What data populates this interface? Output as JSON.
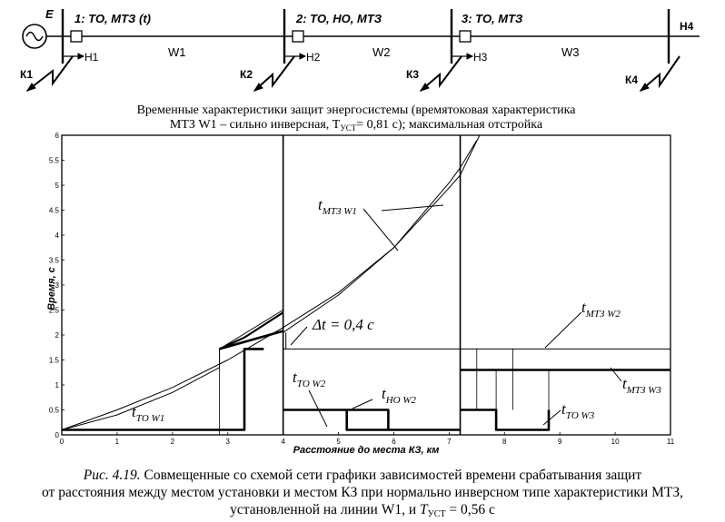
{
  "schematic": {
    "source_label": "E",
    "breakers": [
      {
        "label": "1: ТО, МТЗ (t)",
        "node": "Н1",
        "line": "W1",
        "fault": "К1"
      },
      {
        "label": "2: ТО, НО, МТЗ",
        "node": "Н2",
        "line": "W2",
        "fault": "К2"
      },
      {
        "label": "3: ТО, МТЗ",
        "node": "Н3",
        "line": "W3",
        "fault": "К3"
      }
    ],
    "end_node": "Н4",
    "end_fault": "К4"
  },
  "chart_title_line1": "Временные характеристики защит энергосистемы (времятоковая характеристика",
  "chart_title_line2": "МТЗ W1 – сильно инверсная, Т",
  "chart_title_sub": "УСТ",
  "chart_title_line2_end": "= 0,81 с); максимальная отстройка",
  "chart_data": {
    "type": "line",
    "xlabel": "Расстояние до места КЗ, км",
    "ylabel": "Время, с",
    "xlim": [
      0,
      11
    ],
    "ylim": [
      0,
      6
    ],
    "xticks": [
      "0",
      "1",
      "2",
      "3",
      "4",
      "5",
      "6",
      "7",
      "8",
      "9",
      "10",
      "11"
    ],
    "yticks": [
      "0",
      "0.5",
      "1",
      "1.5",
      "2",
      "2.5",
      "3",
      "3.5",
      "4",
      "4.5",
      "5",
      "5.5",
      "6"
    ],
    "grid": false,
    "section_boundaries_km": [
      4,
      7.2
    ],
    "series": [
      {
        "key": "upper_curve",
        "values": [
          [
            0,
            0.1
          ],
          [
            1,
            0.5
          ],
          [
            2,
            0.95
          ],
          [
            3,
            1.5
          ],
          [
            4,
            2.15
          ],
          [
            5,
            2.85
          ],
          [
            6,
            3.75
          ],
          [
            7,
            4.95
          ],
          [
            7.2,
            5.2
          ],
          [
            7.55,
            6.0
          ]
        ]
      },
      {
        "key": "mtz_w1",
        "values": [
          [
            0,
            0.1
          ],
          [
            1,
            0.4
          ],
          [
            2,
            0.85
          ],
          [
            2.85,
            1.35
          ],
          [
            2.85,
            1.72
          ],
          [
            4,
            2.5
          ],
          [
            4,
            2.05
          ],
          [
            5,
            2.8
          ],
          [
            6,
            3.75
          ],
          [
            7,
            5.05
          ],
          [
            7.2,
            5.35
          ],
          [
            7.5,
            5.9
          ]
        ]
      },
      {
        "key": "mtz_w1_parallel",
        "values": [
          [
            2.85,
            1.72
          ],
          [
            4,
            2.08
          ]
        ]
      },
      {
        "key": "mtz_w1_step",
        "values": [
          [
            2.85,
            0
          ],
          [
            2.85,
            1.72
          ]
        ]
      },
      {
        "key": "to_w1",
        "values": [
          [
            0,
            0.1
          ],
          [
            3.3,
            0.1
          ],
          [
            3.3,
            1.72
          ],
          [
            3.65,
            1.72
          ]
        ]
      },
      {
        "key": "to_w2",
        "values": [
          [
            4,
            0.5
          ],
          [
            5.15,
            0.5
          ],
          [
            5.15,
            0.1
          ],
          [
            7.2,
            0.1
          ]
        ]
      },
      {
        "key": "ho_w2",
        "values": [
          [
            5.15,
            0.5
          ],
          [
            5.9,
            0.5
          ],
          [
            5.9,
            0.1
          ]
        ]
      },
      {
        "key": "mtz_w2",
        "values": [
          [
            4,
            1.72
          ],
          [
            11,
            1.72
          ]
        ]
      },
      {
        "key": "mtz_w2_thin",
        "values": [
          [
            4,
            0.3
          ],
          [
            4,
            1.72
          ]
        ]
      },
      {
        "key": "to_w3",
        "values": [
          [
            7.2,
            0.5
          ],
          [
            7.85,
            0.5
          ],
          [
            7.85,
            0.1
          ],
          [
            8.8,
            0.1
          ],
          [
            8.8,
            0.5
          ]
        ]
      },
      {
        "key": "mtz_w3",
        "values": [
          [
            7.2,
            1.3
          ],
          [
            11,
            1.3
          ]
        ]
      },
      {
        "key": "w3_box",
        "values": [
          [
            7.2,
            0.5
          ],
          [
            7.2,
            1.3
          ]
        ]
      },
      {
        "key": "w3_box2",
        "values": [
          [
            7.5,
            0.5
          ],
          [
            7.5,
            1.72
          ]
        ]
      },
      {
        "key": "w3_box3",
        "values": [
          [
            7.85,
            0.5
          ],
          [
            7.85,
            1.3
          ]
        ]
      },
      {
        "key": "w3_box4",
        "values": [
          [
            8.15,
            0.5
          ],
          [
            8.15,
            1.72
          ]
        ]
      },
      {
        "key": "w3_box5",
        "values": [
          [
            8.8,
            0.5
          ],
          [
            8.8,
            1.3
          ]
        ]
      }
    ],
    "annotations": [
      {
        "text": "t",
        "sub": "МТЗ W1"
      },
      {
        "text": "Δt = 0,4 c",
        "sub": ""
      },
      {
        "text": "t",
        "sub": "МТЗ W2"
      },
      {
        "text": "t",
        "sub": "ТО W2"
      },
      {
        "text": "t",
        "sub": "НО W2"
      },
      {
        "text": "t",
        "sub": "ТО W1"
      },
      {
        "text": "t",
        "sub": "МТЗ W3"
      },
      {
        "text": "t",
        "sub": "ТО W3"
      }
    ]
  },
  "caption": {
    "fig": "Рис. 4.19.",
    "line1": " Совмещенные со схемой сети графики зависимостей времени срабатывания защит",
    "line2": "от расстояния между местом установки и местом КЗ при нормально инверсном типе характеристики МТЗ,",
    "line3a": "установленной на линии W1, и ",
    "line3b": "T",
    "line3sub": "УСТ",
    "line3c": " = 0,56 с"
  }
}
